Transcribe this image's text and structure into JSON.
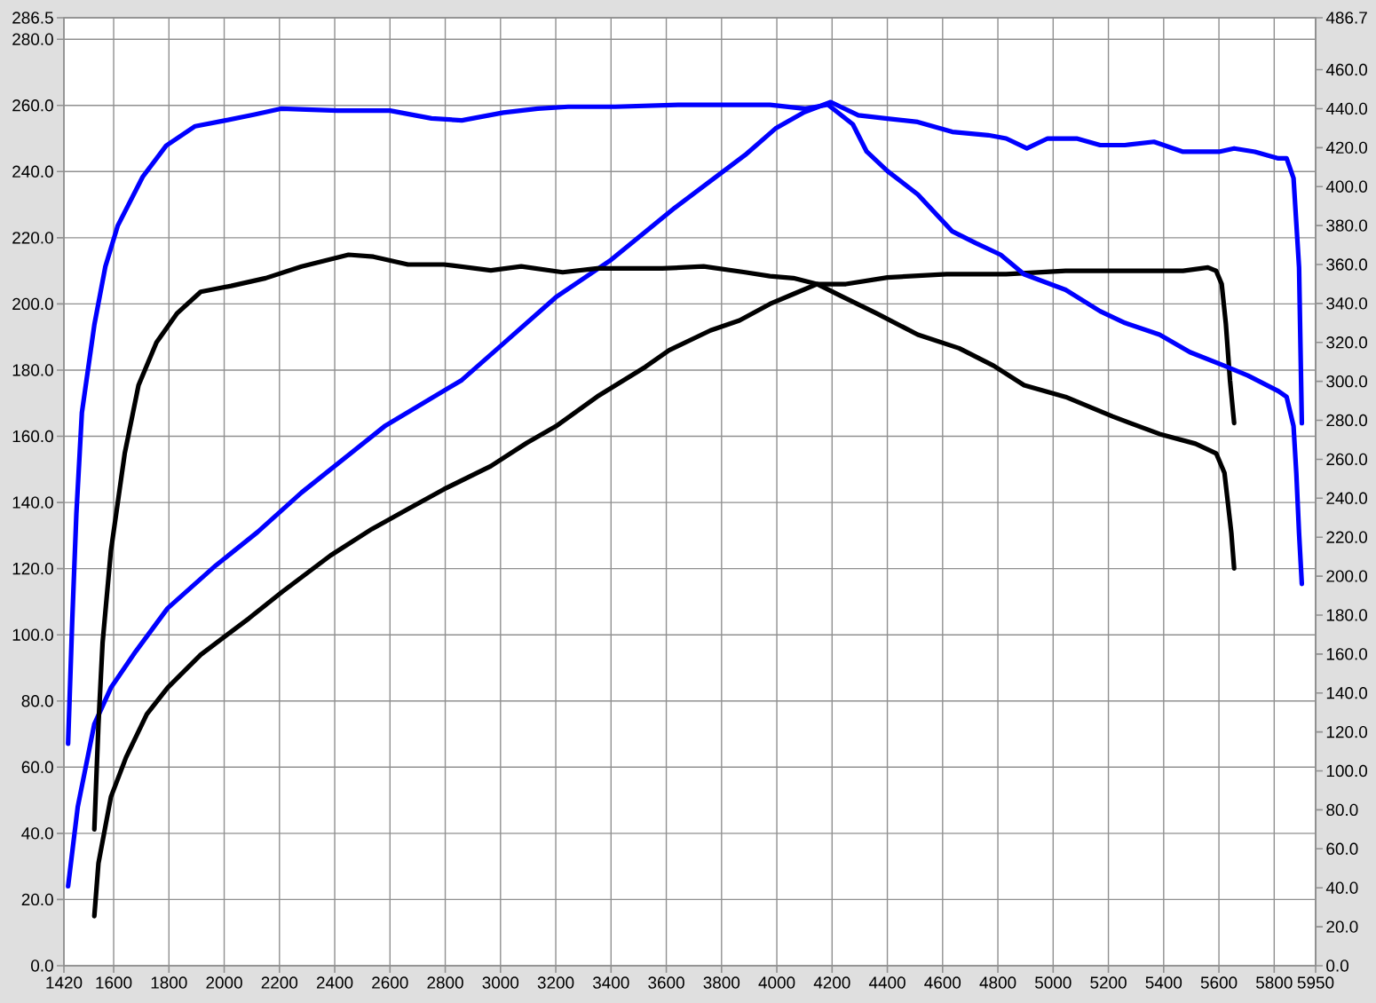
{
  "chart_data": {
    "type": "line",
    "xlim": [
      1420,
      5950
    ],
    "xticks": [
      1420,
      1600,
      1800,
      2000,
      2200,
      2400,
      2600,
      2800,
      3000,
      3200,
      3400,
      3600,
      3800,
      4000,
      4200,
      4400,
      4600,
      4800,
      5000,
      5200,
      5400,
      5600,
      5800,
      5950
    ],
    "ylim": [
      0,
      286.5
    ],
    "yticks": [
      {
        "value": 0,
        "label": "0.0"
      },
      {
        "value": 20,
        "label": "20.0"
      },
      {
        "value": 40,
        "label": "40.0"
      },
      {
        "value": 60,
        "label": "60.0"
      },
      {
        "value": 80,
        "label": "80.0"
      },
      {
        "value": 100,
        "label": "100.0"
      },
      {
        "value": 120,
        "label": "120.0"
      },
      {
        "value": 140,
        "label": "140.0"
      },
      {
        "value": 160,
        "label": "160.0"
      },
      {
        "value": 180,
        "label": "180.0"
      },
      {
        "value": 200,
        "label": "200.0"
      },
      {
        "value": 220,
        "label": "220.0"
      },
      {
        "value": 240,
        "label": "240.0"
      },
      {
        "value": 260,
        "label": "260.0"
      },
      {
        "value": 280,
        "label": "280.0"
      },
      286.5
    ],
    "y2lim": [
      0,
      486.7
    ],
    "y2ticks": [
      {
        "value": 0,
        "label": "0.0"
      },
      {
        "value": 20,
        "label": "20.0"
      },
      {
        "value": 40,
        "label": "40.0"
      },
      {
        "value": 60,
        "label": "60.0"
      },
      {
        "value": 80,
        "label": "80.0"
      },
      {
        "value": 100,
        "label": "100.0"
      },
      {
        "value": 120,
        "label": "120.0"
      },
      {
        "value": 140,
        "label": "140.0"
      },
      {
        "value": 160,
        "label": "160.0"
      },
      {
        "value": 180,
        "label": "180.0"
      },
      {
        "value": 200,
        "label": "200.0"
      },
      {
        "value": 220,
        "label": "220.0"
      },
      {
        "value": 240,
        "label": "240.0"
      },
      {
        "value": 260,
        "label": "260.0"
      },
      {
        "value": 280,
        "label": "280.0"
      },
      {
        "value": 300,
        "label": "300.0"
      },
      {
        "value": 320,
        "label": "320.0"
      },
      {
        "value": 340,
        "label": "340.0"
      },
      {
        "value": 360,
        "label": "360.0"
      },
      {
        "value": 380,
        "label": "380.0"
      },
      {
        "value": 400,
        "label": "400.0"
      },
      {
        "value": 420,
        "label": "420.0"
      },
      {
        "value": 440,
        "label": "440.0"
      },
      {
        "value": 460,
        "label": "460.0"
      },
      486.7
    ],
    "grid": true,
    "marker": "none",
    "line_style": "solid",
    "series": [
      {
        "color": "#0000ff",
        "axis": "y",
        "x": [
          1435,
          1470,
          1530,
          1590,
          1680,
          1795,
          1970,
          2120,
          2280,
          2580,
          2860,
          3010,
          3200,
          3395,
          3630,
          3885,
          3995,
          4100,
          4195,
          4295,
          4400,
          4510,
          4635,
          4765,
          4830,
          4905,
          4980,
          5085,
          5170,
          5260,
          5365,
          5470,
          5600,
          5655,
          5730,
          5815,
          5845,
          5870,
          5890,
          5900
        ],
        "values": [
          24,
          48,
          73,
          84,
          95,
          108,
          121,
          131,
          143,
          163,
          177,
          188,
          202,
          213,
          229,
          245,
          253,
          258,
          261,
          257,
          256,
          255,
          252,
          251,
          250,
          247,
          250,
          250,
          248,
          248,
          249,
          246,
          246,
          247,
          246,
          244,
          244,
          238,
          211,
          164
        ]
      },
      {
        "color": "#0000ff",
        "axis": "y2",
        "x": [
          1435,
          1450,
          1465,
          1485,
          1530,
          1570,
          1615,
          1705,
          1790,
          1895,
          2005,
          2110,
          2205,
          2410,
          2600,
          2750,
          2860,
          3010,
          3135,
          3245,
          3415,
          3650,
          3760,
          3975,
          4100,
          4185,
          4275,
          4325,
          4400,
          4510,
          4635,
          4720,
          4810,
          4895,
          5045,
          5170,
          5260,
          5385,
          5495,
          5620,
          5705,
          5815,
          5845,
          5870,
          5880,
          5890,
          5900
        ],
        "values": [
          114,
          177,
          232,
          284,
          329,
          359,
          380,
          405,
          421,
          431,
          434,
          437,
          440,
          439,
          439,
          435,
          434,
          438,
          440,
          441,
          441,
          442,
          442,
          442,
          440,
          442,
          432,
          418,
          408,
          396,
          377,
          371,
          365,
          355,
          347,
          336,
          330,
          324,
          315,
          308,
          303,
          295,
          292,
          277,
          253,
          222,
          196
        ]
      },
      {
        "color": "#000000",
        "axis": "y",
        "x": [
          1530,
          1545,
          1590,
          1645,
          1720,
          1795,
          1915,
          2090,
          2210,
          2385,
          2535,
          2665,
          2795,
          2965,
          3095,
          3200,
          3350,
          3525,
          3610,
          3760,
          3865,
          3975,
          4060,
          4145,
          4250,
          4400,
          4615,
          4830,
          5045,
          5260,
          5470,
          5560,
          5590,
          5610,
          5625,
          5640,
          5655
        ],
        "values": [
          15,
          31,
          51,
          63,
          76,
          84,
          94,
          105,
          113,
          124,
          132,
          138,
          144,
          151,
          158,
          163,
          172,
          181,
          186,
          192,
          195,
          200,
          203,
          206,
          206,
          208,
          209,
          209,
          210,
          210,
          210,
          211,
          210,
          206,
          194,
          177,
          164
        ]
      },
      {
        "color": "#000000",
        "axis": "y2",
        "x": [
          1530,
          1545,
          1560,
          1590,
          1640,
          1690,
          1755,
          1830,
          1915,
          2025,
          2150,
          2280,
          2450,
          2540,
          2665,
          2795,
          2965,
          3075,
          3225,
          3350,
          3585,
          3735,
          3885,
          3975,
          4060,
          4145,
          4230,
          4360,
          4510,
          4660,
          4785,
          4895,
          5045,
          5215,
          5385,
          5515,
          5590,
          5620,
          5645,
          5655
        ],
        "values": [
          70,
          124,
          166,
          213,
          263,
          298,
          320,
          335,
          346,
          349,
          353,
          359,
          365,
          364,
          360,
          360,
          357,
          359,
          356,
          358,
          358,
          359,
          356,
          354,
          353,
          350,
          344,
          335,
          324,
          317,
          308,
          298,
          292,
          282,
          273,
          268,
          263,
          253,
          222,
          204
        ]
      }
    ]
  }
}
